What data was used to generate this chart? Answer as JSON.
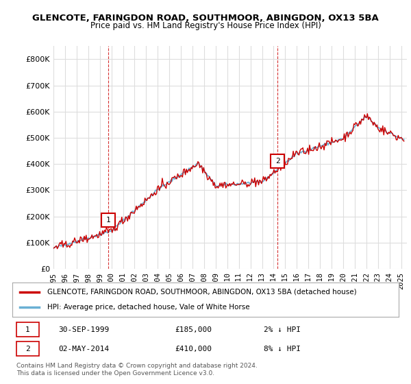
{
  "title_line1": "GLENCOTE, FARINGDON ROAD, SOUTHMOOR, ABINGDON, OX13 5BA",
  "title_line2": "Price paid vs. HM Land Registry's House Price Index (HPI)",
  "ylabel": "",
  "background_color": "#ffffff",
  "plot_bg_color": "#ffffff",
  "grid_color": "#dddddd",
  "hpi_color": "#6ab0d4",
  "price_color": "#cc0000",
  "dashed_color": "#cc0000",
  "marker1_x": 1999.75,
  "marker1_y": 185000,
  "marker1_label": "1",
  "marker2_x": 2014.33,
  "marker2_y": 410000,
  "marker2_label": "2",
  "legend_house": "GLENCOTE, FARINGDON ROAD, SOUTHMOOR, ABINGDON, OX13 5BA (detached house)",
  "legend_hpi": "HPI: Average price, detached house, Vale of White Horse",
  "note1_label": "1",
  "note1_date": "30-SEP-1999",
  "note1_price": "£185,000",
  "note1_pct": "2% ↓ HPI",
  "note2_label": "2",
  "note2_date": "02-MAY-2014",
  "note2_price": "£410,000",
  "note2_pct": "8% ↓ HPI",
  "copyright": "Contains HM Land Registry data © Crown copyright and database right 2024.\nThis data is licensed under the Open Government Licence v3.0.",
  "xmin": 1995.0,
  "xmax": 2025.5,
  "ymin": 0,
  "ymax": 850000,
  "yticks": [
    0,
    100000,
    200000,
    300000,
    400000,
    500000,
    600000,
    700000,
    800000
  ]
}
